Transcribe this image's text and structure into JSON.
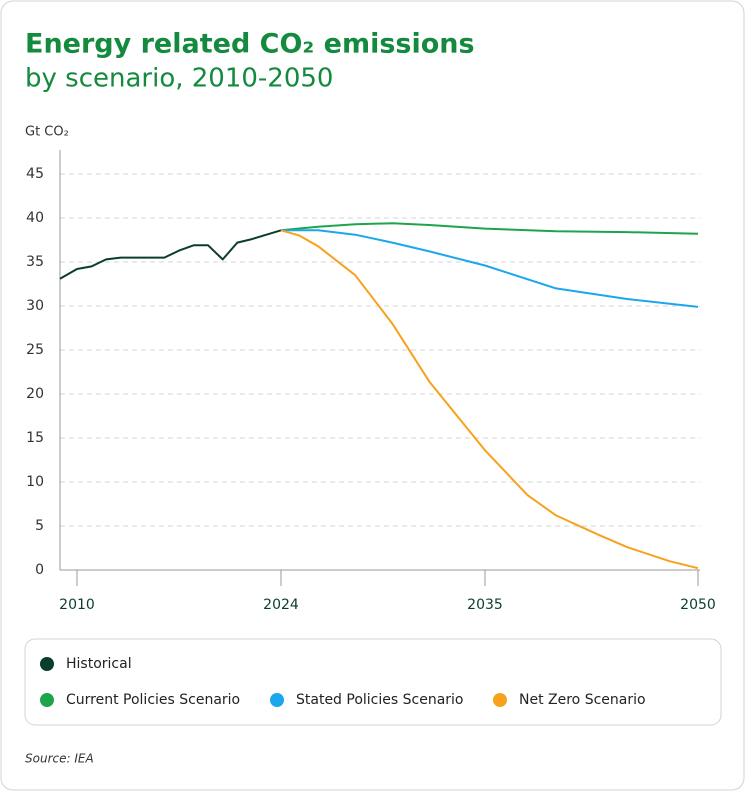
{
  "chart_data": {
    "type": "line",
    "title": "Energy related CO₂ emissions",
    "subtitle": "by scenario, 2010-2050",
    "y_label": "Gt CO₂",
    "source": "Source: IEA",
    "xlim": [
      2009,
      2050
    ],
    "xticks": [
      2010,
      2024,
      2035,
      2050
    ],
    "ylim": [
      0,
      45
    ],
    "yticks": [
      0,
      5,
      10,
      15,
      20,
      25,
      30,
      35,
      40,
      45
    ],
    "grid": true,
    "series": [
      {
        "name": "Historical",
        "color": "#0b3d2c",
        "x": [
          2009,
          2010,
          2011,
          2012,
          2013,
          2014,
          2015,
          2016,
          2017,
          2018,
          2019,
          2020,
          2021,
          2022,
          2023,
          2024
        ],
        "values": [
          33.1,
          34.2,
          34.5,
          35.3,
          35.5,
          35.5,
          35.5,
          35.5,
          36.3,
          36.9,
          36.9,
          35.3,
          37.2,
          37.6,
          38.1,
          38.6
        ]
      },
      {
        "name": "Current Policies Scenario",
        "color": "#1ea44b",
        "x": [
          2024,
          2026,
          2028,
          2030,
          2032,
          2035,
          2040,
          2045,
          2050
        ],
        "values": [
          38.6,
          39.0,
          39.3,
          39.4,
          39.2,
          38.8,
          38.5,
          38.4,
          38.2
        ]
      },
      {
        "name": "Stated Policies Scenario",
        "color": "#1ba7ec",
        "x": [
          2024,
          2026,
          2028,
          2030,
          2032,
          2035,
          2040,
          2045,
          2050
        ],
        "values": [
          38.6,
          38.6,
          38.1,
          37.2,
          36.2,
          34.6,
          32.0,
          30.8,
          29.9
        ]
      },
      {
        "name": "Net Zero Scenario",
        "color": "#f7a11c",
        "x": [
          2024,
          2025,
          2026,
          2028,
          2030,
          2032,
          2035,
          2038,
          2040,
          2043,
          2045,
          2048,
          2050
        ],
        "values": [
          38.6,
          38.0,
          36.8,
          33.5,
          28.0,
          21.4,
          13.6,
          8.5,
          6.2,
          4.0,
          2.6,
          1.0,
          0.2
        ]
      }
    ]
  }
}
